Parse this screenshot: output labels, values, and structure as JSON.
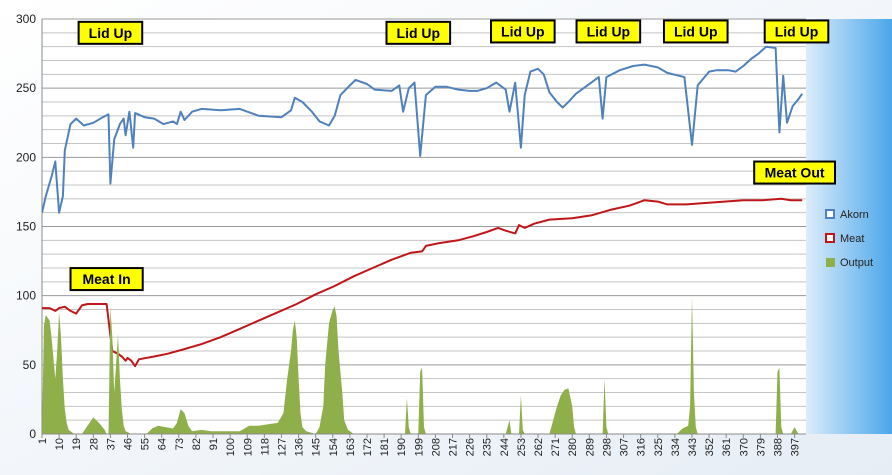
{
  "chart_data": {
    "type": "line",
    "title": "",
    "xlabel": "",
    "ylabel": "",
    "ylim": [
      0,
      300
    ],
    "xlim": [
      1,
      403
    ],
    "yticks": [
      0,
      50,
      100,
      150,
      200,
      250,
      300
    ],
    "xticks": [
      1,
      10,
      19,
      28,
      37,
      46,
      55,
      64,
      73,
      82,
      91,
      100,
      109,
      118,
      127,
      136,
      145,
      154,
      163,
      172,
      181,
      190,
      199,
      208,
      217,
      226,
      235,
      244,
      253,
      262,
      271,
      280,
      289,
      298,
      307,
      316,
      325,
      334,
      343,
      352,
      361,
      370,
      379,
      388,
      397
    ],
    "grid": true,
    "legend_position": "right",
    "legend": [
      "Akorn",
      "Meat",
      "Output"
    ],
    "colors": {
      "Akorn": "#4f81bd",
      "Meat": "#c0161a",
      "Output": "#8faf4a",
      "plot_background": "#ffffff",
      "outer_background": "#f3f6fa",
      "annotation_fill": "#ffff00"
    },
    "series": [
      {
        "name": "Akorn",
        "type": "line",
        "points": [
          [
            1,
            160
          ],
          [
            3,
            172
          ],
          [
            6,
            186
          ],
          [
            8,
            197
          ],
          [
            10,
            160
          ],
          [
            12,
            172
          ],
          [
            13,
            205
          ],
          [
            16,
            224
          ],
          [
            19,
            228
          ],
          [
            23,
            223
          ],
          [
            28,
            225
          ],
          [
            33,
            229
          ],
          [
            36,
            231
          ],
          [
            37,
            181
          ],
          [
            39,
            213
          ],
          [
            42,
            224
          ],
          [
            44,
            228
          ],
          [
            45,
            216
          ],
          [
            47,
            233
          ],
          [
            49,
            207
          ],
          [
            50,
            232
          ],
          [
            55,
            229
          ],
          [
            60,
            228
          ],
          [
            65,
            224
          ],
          [
            70,
            226
          ],
          [
            72,
            224
          ],
          [
            74,
            233
          ],
          [
            76,
            227
          ],
          [
            80,
            233
          ],
          [
            85,
            235
          ],
          [
            95,
            234
          ],
          [
            105,
            235
          ],
          [
            115,
            230
          ],
          [
            127,
            229
          ],
          [
            132,
            234
          ],
          [
            134,
            243
          ],
          [
            138,
            240
          ],
          [
            143,
            233
          ],
          [
            147,
            226
          ],
          [
            152,
            223
          ],
          [
            155,
            230
          ],
          [
            158,
            245
          ],
          [
            163,
            252
          ],
          [
            166,
            256
          ],
          [
            172,
            253
          ],
          [
            176,
            249
          ],
          [
            185,
            248
          ],
          [
            189,
            252
          ],
          [
            191,
            233
          ],
          [
            194,
            250
          ],
          [
            197,
            254
          ],
          [
            200,
            201
          ],
          [
            203,
            245
          ],
          [
            208,
            251
          ],
          [
            214,
            251
          ],
          [
            220,
            249
          ],
          [
            226,
            248
          ],
          [
            230,
            248
          ],
          [
            235,
            250
          ],
          [
            240,
            254
          ],
          [
            245,
            249
          ],
          [
            247,
            233
          ],
          [
            250,
            254
          ],
          [
            253,
            207
          ],
          [
            255,
            245
          ],
          [
            258,
            262
          ],
          [
            262,
            264
          ],
          [
            265,
            260
          ],
          [
            268,
            247
          ],
          [
            272,
            240
          ],
          [
            275,
            236
          ],
          [
            278,
            240
          ],
          [
            282,
            246
          ],
          [
            287,
            251
          ],
          [
            294,
            258
          ],
          [
            296,
            228
          ],
          [
            298,
            258
          ],
          [
            305,
            263
          ],
          [
            312,
            266
          ],
          [
            318,
            267
          ],
          [
            325,
            265
          ],
          [
            330,
            261
          ],
          [
            336,
            259
          ],
          [
            339,
            258
          ],
          [
            343,
            209
          ],
          [
            346,
            252
          ],
          [
            352,
            262
          ],
          [
            356,
            263
          ],
          [
            362,
            263
          ],
          [
            366,
            262
          ],
          [
            370,
            266
          ],
          [
            374,
            271
          ],
          [
            378,
            275
          ],
          [
            382,
            280
          ],
          [
            387,
            279
          ],
          [
            389,
            218
          ],
          [
            391,
            259
          ],
          [
            393,
            225
          ],
          [
            396,
            237
          ],
          [
            399,
            242
          ],
          [
            401,
            246
          ]
        ]
      },
      {
        "name": "Meat",
        "type": "line",
        "points": [
          [
            1,
            91
          ],
          [
            5,
            91
          ],
          [
            8,
            89
          ],
          [
            10,
            91
          ],
          [
            13,
            92
          ],
          [
            16,
            89
          ],
          [
            19,
            87
          ],
          [
            22,
            93
          ],
          [
            25,
            94
          ],
          [
            30,
            94
          ],
          [
            35,
            94
          ],
          [
            38,
            60
          ],
          [
            41,
            58
          ],
          [
            43,
            56
          ],
          [
            45,
            53
          ],
          [
            46,
            55
          ],
          [
            48,
            53
          ],
          [
            50,
            49
          ],
          [
            52,
            54
          ],
          [
            60,
            56
          ],
          [
            67,
            58
          ],
          [
            75,
            61
          ],
          [
            85,
            65
          ],
          [
            95,
            70
          ],
          [
            105,
            76
          ],
          [
            115,
            82
          ],
          [
            125,
            88
          ],
          [
            135,
            94
          ],
          [
            145,
            101
          ],
          [
            155,
            107
          ],
          [
            165,
            114
          ],
          [
            175,
            120
          ],
          [
            185,
            126
          ],
          [
            195,
            131
          ],
          [
            201,
            132
          ],
          [
            203,
            136
          ],
          [
            210,
            138
          ],
          [
            220,
            140
          ],
          [
            228,
            143
          ],
          [
            235,
            146
          ],
          [
            241,
            149
          ],
          [
            245,
            147
          ],
          [
            250,
            145
          ],
          [
            252,
            151
          ],
          [
            255,
            149
          ],
          [
            260,
            152
          ],
          [
            268,
            155
          ],
          [
            280,
            156
          ],
          [
            290,
            158
          ],
          [
            300,
            162
          ],
          [
            310,
            165
          ],
          [
            318,
            169
          ],
          [
            325,
            168
          ],
          [
            330,
            166
          ],
          [
            340,
            166
          ],
          [
            350,
            167
          ],
          [
            360,
            168
          ],
          [
            370,
            169
          ],
          [
            380,
            169
          ],
          [
            390,
            170
          ],
          [
            395,
            169
          ],
          [
            401,
            169
          ]
        ]
      },
      {
        "name": "Output",
        "type": "area",
        "points": [
          [
            1,
            0
          ],
          [
            2,
            78
          ],
          [
            3,
            86
          ],
          [
            5,
            82
          ],
          [
            6,
            70
          ],
          [
            7,
            55
          ],
          [
            8,
            40
          ],
          [
            9,
            60
          ],
          [
            10,
            88
          ],
          [
            11,
            70
          ],
          [
            12,
            40
          ],
          [
            13,
            18
          ],
          [
            14,
            8
          ],
          [
            15,
            3
          ],
          [
            18,
            0
          ],
          [
            22,
            0
          ],
          [
            25,
            6
          ],
          [
            28,
            12
          ],
          [
            31,
            8
          ],
          [
            34,
            3
          ],
          [
            35,
            0
          ],
          [
            36,
            0
          ],
          [
            37,
            92
          ],
          [
            38,
            70
          ],
          [
            39,
            30
          ],
          [
            40,
            50
          ],
          [
            41,
            72
          ],
          [
            42,
            40
          ],
          [
            43,
            18
          ],
          [
            44,
            6
          ],
          [
            45,
            2
          ],
          [
            48,
            0
          ],
          [
            56,
            0
          ],
          [
            59,
            4
          ],
          [
            62,
            6
          ],
          [
            66,
            5
          ],
          [
            70,
            4
          ],
          [
            72,
            8
          ],
          [
            74,
            18
          ],
          [
            76,
            15
          ],
          [
            78,
            6
          ],
          [
            80,
            2
          ],
          [
            85,
            3
          ],
          [
            90,
            2
          ],
          [
            100,
            2
          ],
          [
            105,
            2
          ],
          [
            110,
            6
          ],
          [
            115,
            6
          ],
          [
            120,
            7
          ],
          [
            125,
            8
          ],
          [
            128,
            15
          ],
          [
            130,
            40
          ],
          [
            132,
            60
          ],
          [
            133,
            75
          ],
          [
            134,
            82
          ],
          [
            135,
            70
          ],
          [
            136,
            40
          ],
          [
            137,
            15
          ],
          [
            138,
            5
          ],
          [
            140,
            2
          ],
          [
            145,
            0
          ],
          [
            147,
            5
          ],
          [
            149,
            20
          ],
          [
            150,
            50
          ],
          [
            152,
            80
          ],
          [
            154,
            90
          ],
          [
            155,
            92
          ],
          [
            156,
            85
          ],
          [
            157,
            60
          ],
          [
            159,
            30
          ],
          [
            160,
            10
          ],
          [
            162,
            3
          ],
          [
            165,
            0
          ],
          [
            192,
            0
          ],
          [
            193,
            26
          ],
          [
            194,
            5
          ],
          [
            195,
            0
          ],
          [
            199,
            0
          ],
          [
            200,
            45
          ],
          [
            201,
            48
          ],
          [
            202,
            5
          ],
          [
            203,
            0
          ],
          [
            245,
            0
          ],
          [
            247,
            10
          ],
          [
            248,
            0
          ],
          [
            252,
            0
          ],
          [
            253,
            28
          ],
          [
            254,
            3
          ],
          [
            255,
            0
          ],
          [
            268,
            0
          ],
          [
            270,
            10
          ],
          [
            272,
            20
          ],
          [
            274,
            28
          ],
          [
            276,
            32
          ],
          [
            278,
            33
          ],
          [
            280,
            20
          ],
          [
            281,
            5
          ],
          [
            282,
            0
          ],
          [
            296,
            0
          ],
          [
            297,
            40
          ],
          [
            298,
            5
          ],
          [
            299,
            0
          ],
          [
            335,
            0
          ],
          [
            338,
            4
          ],
          [
            341,
            6
          ],
          [
            342,
            20
          ],
          [
            343,
            100
          ],
          [
            344,
            30
          ],
          [
            345,
            5
          ],
          [
            346,
            0
          ],
          [
            360,
            0
          ],
          [
            370,
            0
          ],
          [
            380,
            0
          ],
          [
            387,
            0
          ],
          [
            388,
            45
          ],
          [
            389,
            48
          ],
          [
            390,
            5
          ],
          [
            391,
            0
          ],
          [
            395,
            0
          ],
          [
            397,
            5
          ],
          [
            399,
            0
          ],
          [
            401,
            0
          ]
        ]
      }
    ],
    "annotations": [
      {
        "text": "Lid Up",
        "x": 37,
        "y": 290
      },
      {
        "text": "Lid Up",
        "x": 199,
        "y": 290
      },
      {
        "text": "Lid Up",
        "x": 254,
        "y": 291
      },
      {
        "text": "Lid Up",
        "x": 299,
        "y": 291
      },
      {
        "text": "Lid Up",
        "x": 345,
        "y": 291
      },
      {
        "text": "Lid Up",
        "x": 398,
        "y": 291
      },
      {
        "text": "Meat In",
        "x": 35,
        "y": 112
      },
      {
        "text": "Meat Out",
        "x": 397,
        "y": 189
      }
    ]
  }
}
